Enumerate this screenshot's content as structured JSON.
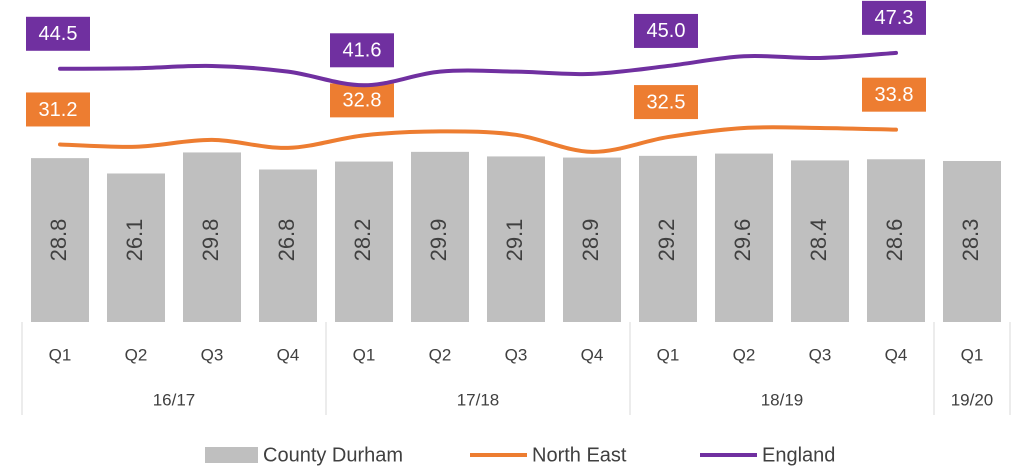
{
  "chart_data": {
    "type": "bar_line",
    "categories": [
      "Q1",
      "Q2",
      "Q3",
      "Q4",
      "Q1",
      "Q2",
      "Q3",
      "Q4",
      "Q1",
      "Q2",
      "Q3",
      "Q4",
      "Q1"
    ],
    "groups": [
      {
        "name": "16/17",
        "count": 4
      },
      {
        "name": "17/18",
        "count": 4
      },
      {
        "name": "18/19",
        "count": 4
      },
      {
        "name": "19/20",
        "count": 1
      }
    ],
    "series": [
      {
        "name": "County Durham",
        "type": "bar",
        "color": "#bfbfbf",
        "values": [
          28.8,
          26.1,
          29.8,
          26.8,
          28.2,
          29.9,
          29.1,
          28.9,
          29.2,
          29.6,
          28.4,
          28.6,
          28.3
        ]
      },
      {
        "name": "North East",
        "type": "line",
        "color": "#ed7d31",
        "values": [
          31.2,
          30.8,
          32.0,
          30.6,
          32.8,
          33.5,
          32.9,
          29.9,
          32.5,
          34.1,
          34.1,
          33.8,
          null
        ],
        "value_labels": [
          "31.2",
          null,
          null,
          null,
          "32.8",
          null,
          null,
          null,
          "32.5",
          null,
          null,
          "33.8",
          null
        ]
      },
      {
        "name": "England",
        "type": "line",
        "color": "#7030a0",
        "values": [
          44.5,
          44.6,
          45.0,
          44.0,
          41.6,
          44.0,
          44.0,
          43.6,
          45.0,
          46.7,
          46.4,
          47.3,
          null
        ],
        "value_labels": [
          "44.5",
          null,
          null,
          null,
          "41.6",
          null,
          null,
          null,
          "45.0",
          null,
          null,
          "47.3",
          null
        ]
      }
    ]
  }
}
